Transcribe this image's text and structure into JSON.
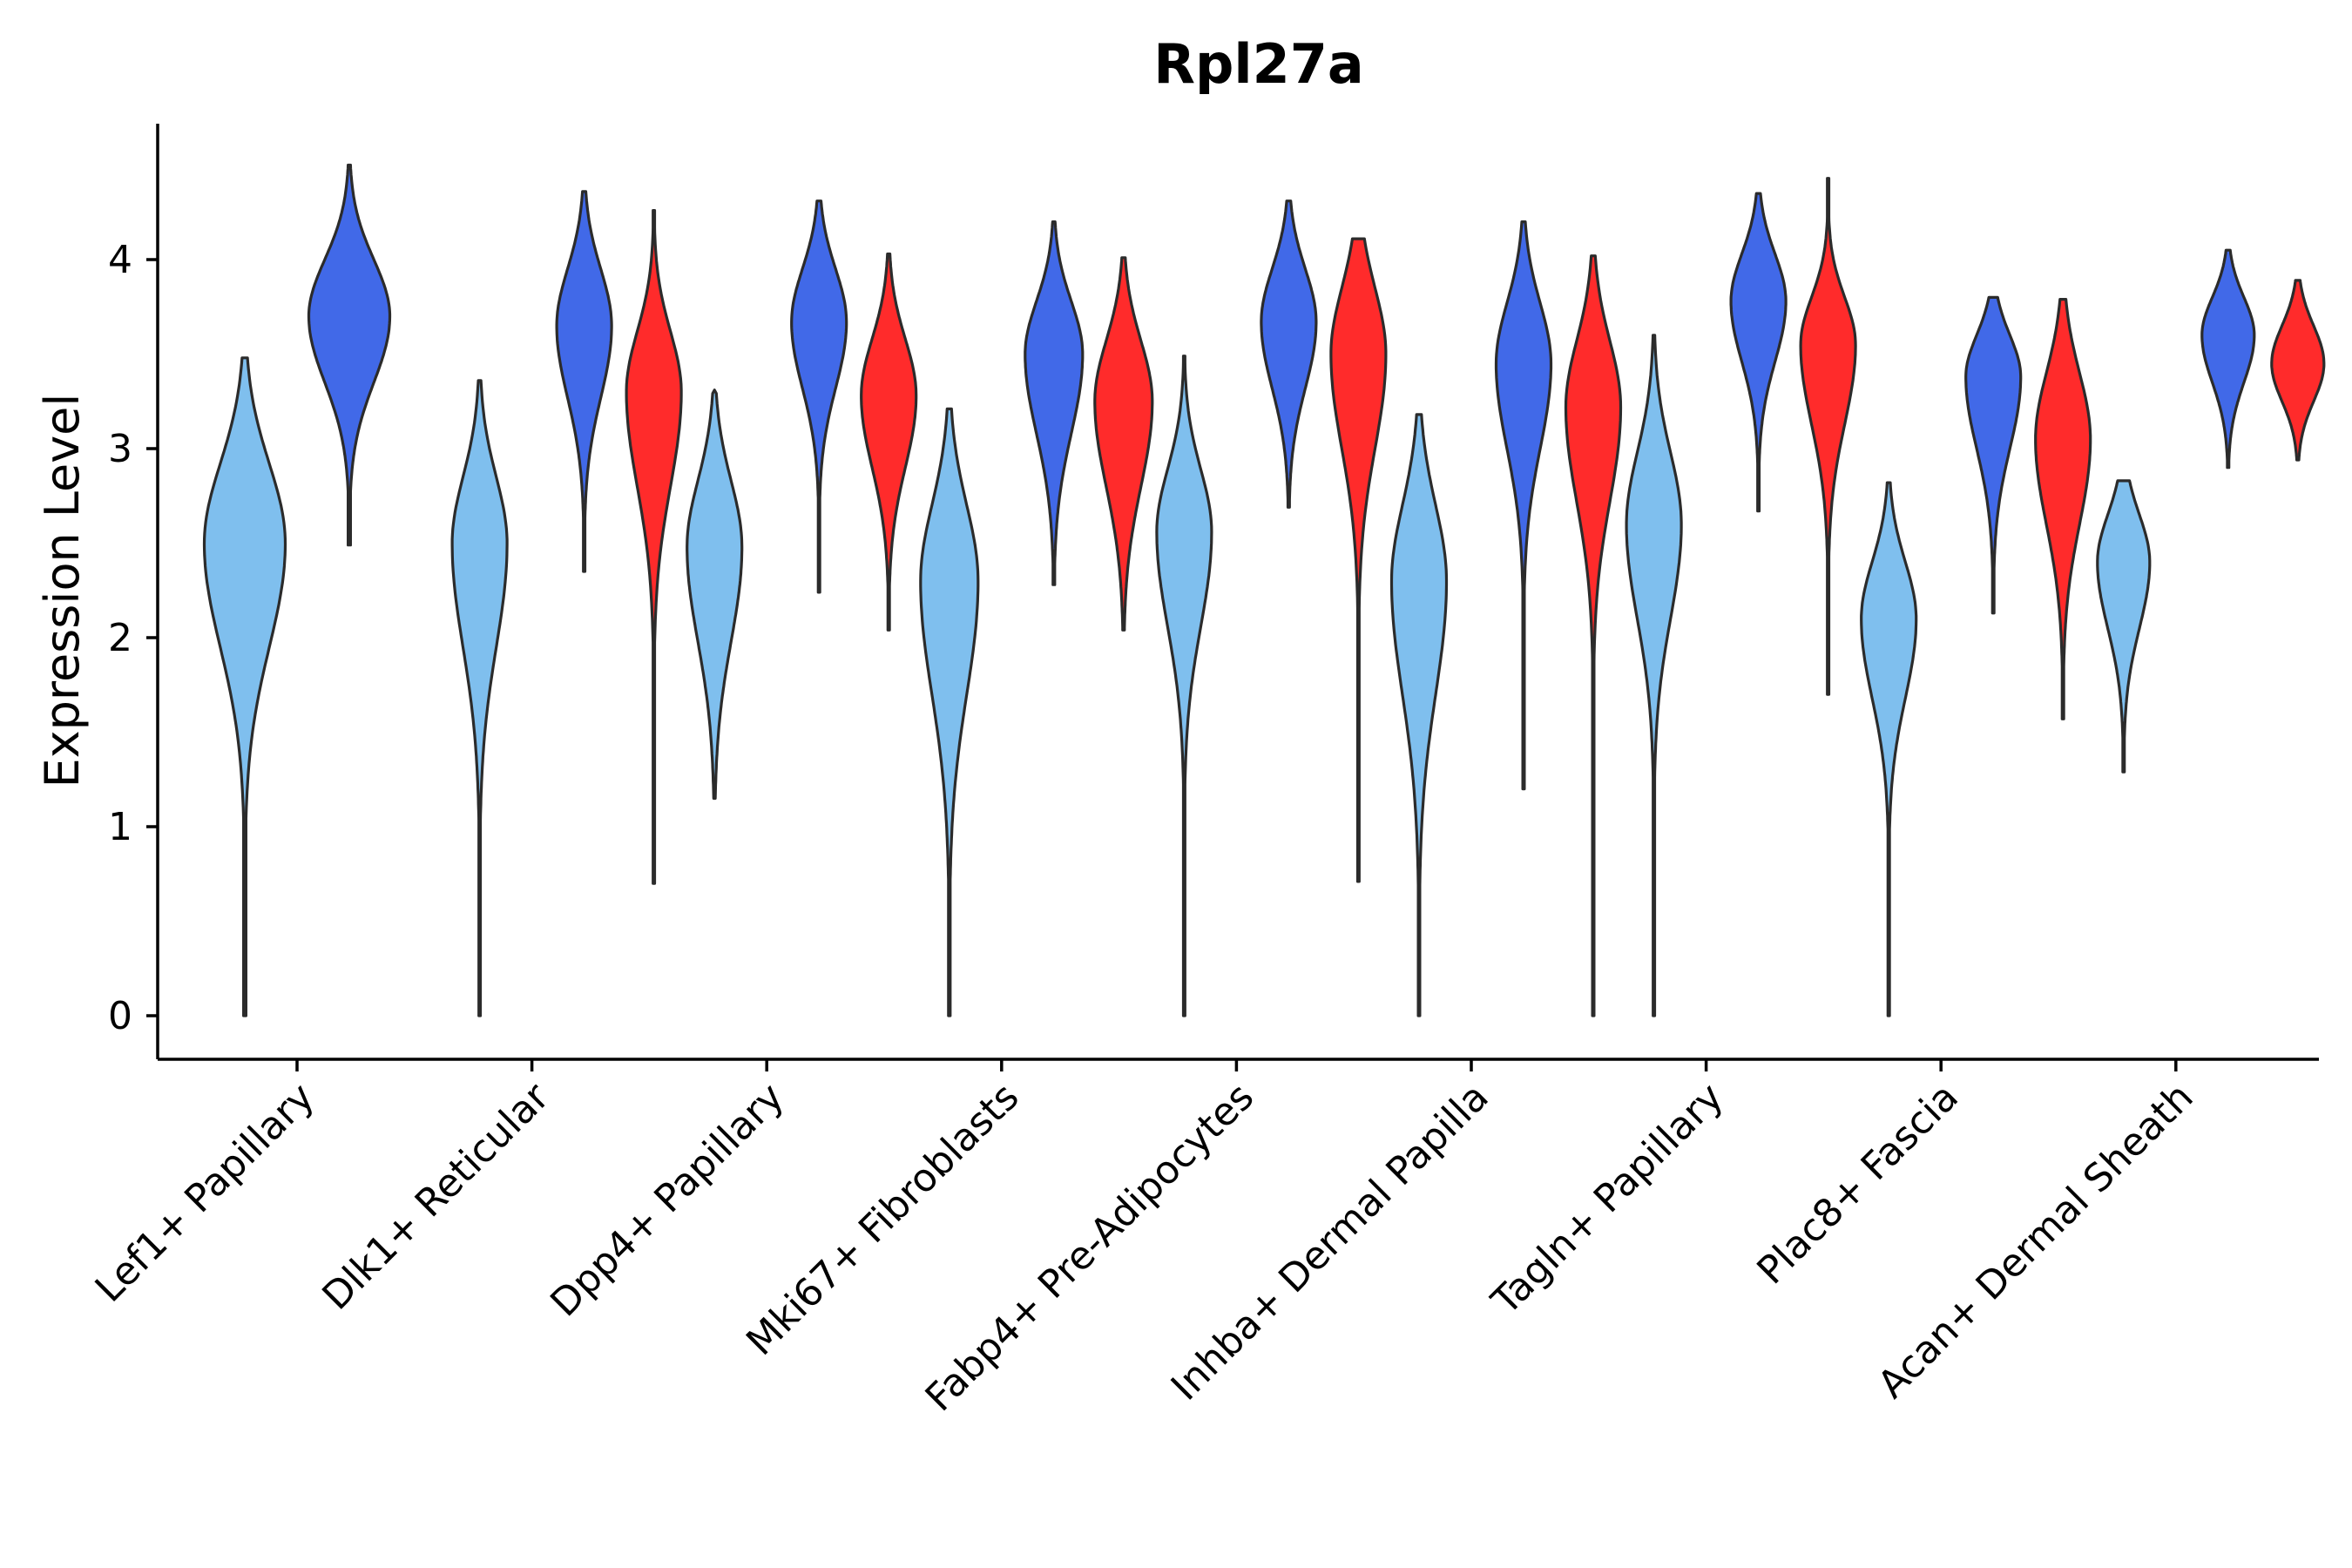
{
  "chart_data": {
    "type": "violin",
    "title": "Rpl27a",
    "ylabel": "Expression Level",
    "xlabel": "",
    "ylim": [
      -0.22,
      4.72
    ],
    "yticks": [
      0,
      1,
      2,
      3,
      4
    ],
    "categories": [
      "Lef1+ Papillary",
      "Dlk1+ Reticular",
      "Dpp4+ Papillary",
      "Mki67+ Fibroblasts",
      "Fabp4+ Pre-Adipocytes",
      "Inhba+ Dermal Papilla",
      "Tagln+ Papillary",
      "Plac8+ Fascia",
      "Acan+ Dermal Sheath"
    ],
    "series": [
      {
        "name": "group-light-blue",
        "color": "#7fbfee",
        "violins": [
          {
            "category": "Lef1+ Papillary",
            "min": 0.0,
            "max": 3.48,
            "mode": 2.5,
            "halfwidth": 0.62,
            "spread_low": 0.55,
            "spread_high": 0.42
          },
          {
            "category": "Dlk1+ Reticular",
            "min": 0.0,
            "max": 3.36,
            "mode": 2.5,
            "halfwidth": 0.42,
            "spread_low": 0.55,
            "spread_high": 0.35
          },
          {
            "category": "Dpp4+ Papillary",
            "min": 1.15,
            "max": 3.31,
            "mode": 2.48,
            "halfwidth": 0.42,
            "spread_low": 0.5,
            "spread_high": 0.35
          },
          {
            "category": "Mki67+ Fibroblasts",
            "min": 0.0,
            "max": 3.21,
            "mode": 2.3,
            "halfwidth": 0.44,
            "spread_low": 0.6,
            "spread_high": 0.4
          },
          {
            "category": "Fabp4+ Pre-Adipocytes",
            "min": 0.0,
            "max": 3.49,
            "mode": 2.56,
            "halfwidth": 0.42,
            "spread_low": 0.5,
            "spread_high": 0.33
          },
          {
            "category": "Inhba+ Dermal Papilla",
            "min": 0.0,
            "max": 3.18,
            "mode": 2.3,
            "halfwidth": 0.42,
            "spread_low": 0.6,
            "spread_high": 0.4
          },
          {
            "category": "Tagln+ Papillary",
            "min": 0.0,
            "max": 3.6,
            "mode": 2.6,
            "halfwidth": 0.42,
            "spread_low": 0.5,
            "spread_high": 0.38
          },
          {
            "category": "Plac8+ Fascia",
            "min": 0.0,
            "max": 2.82,
            "mode": 2.1,
            "halfwidth": 0.42,
            "spread_low": 0.42,
            "spread_high": 0.3
          },
          {
            "category": "Acan+ Dermal Sheath",
            "min": 1.29,
            "max": 2.83,
            "mode": 2.4,
            "halfwidth": 0.4,
            "spread_low": 0.35,
            "spread_high": 0.25
          }
        ]
      },
      {
        "name": "group-dark-blue",
        "color": "#4169e8",
        "violins": [
          {
            "category": "Lef1+ Papillary",
            "min": 2.49,
            "max": 4.5,
            "mode": 3.7,
            "halfwidth": 0.62,
            "spread_low": 0.35,
            "spread_high": 0.3
          },
          {
            "category": "Dlk1+ Reticular",
            "min": 2.35,
            "max": 4.36,
            "mode": 3.65,
            "halfwidth": 0.42,
            "spread_low": 0.38,
            "spread_high": 0.3
          },
          {
            "category": "Dpp4+ Papillary",
            "min": 2.24,
            "max": 4.31,
            "mode": 3.67,
            "halfwidth": 0.42,
            "spread_low": 0.35,
            "spread_high": 0.28
          },
          {
            "category": "Mki67+ Fibroblasts",
            "min": 2.28,
            "max": 4.2,
            "mode": 3.5,
            "halfwidth": 0.44,
            "spread_low": 0.42,
            "spread_high": 0.28
          },
          {
            "category": "Fabp4+ Pre-Adipocytes",
            "min": 2.69,
            "max": 4.31,
            "mode": 3.67,
            "halfwidth": 0.42,
            "spread_low": 0.35,
            "spread_high": 0.28
          },
          {
            "category": "Inhba+ Dermal Papilla",
            "min": 1.2,
            "max": 4.2,
            "mode": 3.45,
            "halfwidth": 0.42,
            "spread_low": 0.45,
            "spread_high": 0.32
          },
          {
            "category": "Tagln+ Papillary",
            "min": 2.67,
            "max": 4.35,
            "mode": 3.78,
            "halfwidth": 0.42,
            "spread_low": 0.32,
            "spread_high": 0.25
          },
          {
            "category": "Plac8+ Fascia",
            "min": 2.13,
            "max": 3.8,
            "mode": 3.38,
            "halfwidth": 0.42,
            "spread_low": 0.38,
            "spread_high": 0.22
          },
          {
            "category": "Acan+ Dermal Sheath",
            "min": 2.9,
            "max": 4.05,
            "mode": 3.6,
            "halfwidth": 0.4,
            "spread_low": 0.25,
            "spread_high": 0.2
          }
        ]
      },
      {
        "name": "group-red",
        "color": "#ff2b2b",
        "violins": [
          {
            "category": "Dlk1+ Reticular",
            "min": 0.7,
            "max": 4.26,
            "mode": 3.3,
            "halfwidth": 0.42,
            "spread_low": 0.5,
            "spread_high": 0.32
          },
          {
            "category": "Dpp4+ Papillary",
            "min": 2.04,
            "max": 4.03,
            "mode": 3.28,
            "halfwidth": 0.42,
            "spread_low": 0.38,
            "spread_high": 0.3
          },
          {
            "category": "Mki67+ Fibroblasts",
            "min": 2.04,
            "max": 4.01,
            "mode": 3.25,
            "halfwidth": 0.44,
            "spread_low": 0.45,
            "spread_high": 0.32
          },
          {
            "category": "Fabp4+ Pre-Adipocytes",
            "min": 0.71,
            "max": 4.11,
            "mode": 3.5,
            "halfwidth": 0.42,
            "spread_low": 0.5,
            "spread_high": 0.35
          },
          {
            "category": "Inhba+ Dermal Papilla",
            "min": 0.0,
            "max": 4.02,
            "mode": 3.22,
            "halfwidth": 0.42,
            "spread_low": 0.5,
            "spread_high": 0.35
          },
          {
            "category": "Tagln+ Papillary",
            "min": 1.7,
            "max": 4.43,
            "mode": 3.55,
            "halfwidth": 0.42,
            "spread_low": 0.42,
            "spread_high": 0.25
          },
          {
            "category": "Plac8+ Fascia",
            "min": 1.57,
            "max": 3.79,
            "mode": 3.05,
            "halfwidth": 0.42,
            "spread_low": 0.45,
            "spread_high": 0.35
          },
          {
            "category": "Acan+ Dermal Sheath",
            "min": 2.94,
            "max": 3.89,
            "mode": 3.45,
            "halfwidth": 0.4,
            "spread_low": 0.2,
            "spread_high": 0.2
          }
        ]
      }
    ]
  }
}
